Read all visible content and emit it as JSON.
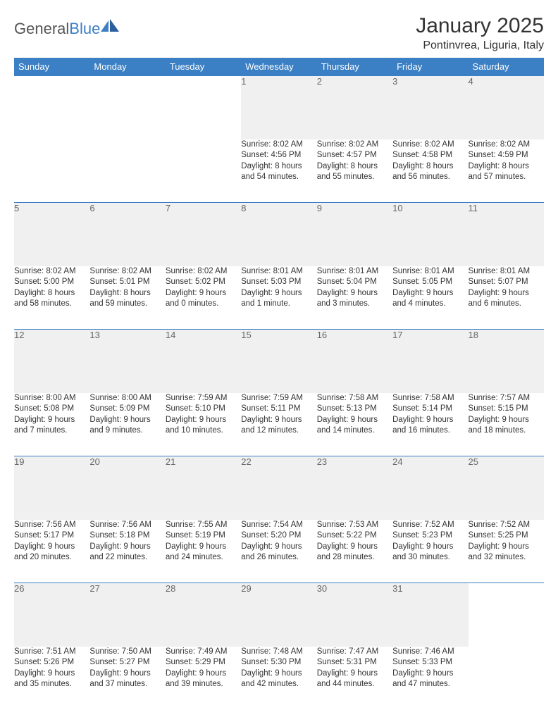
{
  "logo": {
    "text_gray": "General",
    "text_blue": "Blue"
  },
  "title": "January 2025",
  "location": "Pontinvrea, Liguria, Italy",
  "colors": {
    "header_bg": "#3b7fc4",
    "header_text": "#ffffff",
    "daynum_bg": "#f0f0f0",
    "daynum_text": "#666666",
    "border": "#3b7fc4",
    "body_text": "#333333",
    "logo_gray": "#555555",
    "logo_blue": "#3b7fc4"
  },
  "day_headers": [
    "Sunday",
    "Monday",
    "Tuesday",
    "Wednesday",
    "Thursday",
    "Friday",
    "Saturday"
  ],
  "weeks": [
    {
      "nums": [
        "",
        "",
        "",
        "1",
        "2",
        "3",
        "4"
      ],
      "cells": [
        "",
        "",
        "",
        "Sunrise: 8:02 AM\nSunset: 4:56 PM\nDaylight: 8 hours and 54 minutes.",
        "Sunrise: 8:02 AM\nSunset: 4:57 PM\nDaylight: 8 hours and 55 minutes.",
        "Sunrise: 8:02 AM\nSunset: 4:58 PM\nDaylight: 8 hours and 56 minutes.",
        "Sunrise: 8:02 AM\nSunset: 4:59 PM\nDaylight: 8 hours and 57 minutes."
      ]
    },
    {
      "nums": [
        "5",
        "6",
        "7",
        "8",
        "9",
        "10",
        "11"
      ],
      "cells": [
        "Sunrise: 8:02 AM\nSunset: 5:00 PM\nDaylight: 8 hours and 58 minutes.",
        "Sunrise: 8:02 AM\nSunset: 5:01 PM\nDaylight: 8 hours and 59 minutes.",
        "Sunrise: 8:02 AM\nSunset: 5:02 PM\nDaylight: 9 hours and 0 minutes.",
        "Sunrise: 8:01 AM\nSunset: 5:03 PM\nDaylight: 9 hours and 1 minute.",
        "Sunrise: 8:01 AM\nSunset: 5:04 PM\nDaylight: 9 hours and 3 minutes.",
        "Sunrise: 8:01 AM\nSunset: 5:05 PM\nDaylight: 9 hours and 4 minutes.",
        "Sunrise: 8:01 AM\nSunset: 5:07 PM\nDaylight: 9 hours and 6 minutes."
      ]
    },
    {
      "nums": [
        "12",
        "13",
        "14",
        "15",
        "16",
        "17",
        "18"
      ],
      "cells": [
        "Sunrise: 8:00 AM\nSunset: 5:08 PM\nDaylight: 9 hours and 7 minutes.",
        "Sunrise: 8:00 AM\nSunset: 5:09 PM\nDaylight: 9 hours and 9 minutes.",
        "Sunrise: 7:59 AM\nSunset: 5:10 PM\nDaylight: 9 hours and 10 minutes.",
        "Sunrise: 7:59 AM\nSunset: 5:11 PM\nDaylight: 9 hours and 12 minutes.",
        "Sunrise: 7:58 AM\nSunset: 5:13 PM\nDaylight: 9 hours and 14 minutes.",
        "Sunrise: 7:58 AM\nSunset: 5:14 PM\nDaylight: 9 hours and 16 minutes.",
        "Sunrise: 7:57 AM\nSunset: 5:15 PM\nDaylight: 9 hours and 18 minutes."
      ]
    },
    {
      "nums": [
        "19",
        "20",
        "21",
        "22",
        "23",
        "24",
        "25"
      ],
      "cells": [
        "Sunrise: 7:56 AM\nSunset: 5:17 PM\nDaylight: 9 hours and 20 minutes.",
        "Sunrise: 7:56 AM\nSunset: 5:18 PM\nDaylight: 9 hours and 22 minutes.",
        "Sunrise: 7:55 AM\nSunset: 5:19 PM\nDaylight: 9 hours and 24 minutes.",
        "Sunrise: 7:54 AM\nSunset: 5:20 PM\nDaylight: 9 hours and 26 minutes.",
        "Sunrise: 7:53 AM\nSunset: 5:22 PM\nDaylight: 9 hours and 28 minutes.",
        "Sunrise: 7:52 AM\nSunset: 5:23 PM\nDaylight: 9 hours and 30 minutes.",
        "Sunrise: 7:52 AM\nSunset: 5:25 PM\nDaylight: 9 hours and 32 minutes."
      ]
    },
    {
      "nums": [
        "26",
        "27",
        "28",
        "29",
        "30",
        "31",
        ""
      ],
      "cells": [
        "Sunrise: 7:51 AM\nSunset: 5:26 PM\nDaylight: 9 hours and 35 minutes.",
        "Sunrise: 7:50 AM\nSunset: 5:27 PM\nDaylight: 9 hours and 37 minutes.",
        "Sunrise: 7:49 AM\nSunset: 5:29 PM\nDaylight: 9 hours and 39 minutes.",
        "Sunrise: 7:48 AM\nSunset: 5:30 PM\nDaylight: 9 hours and 42 minutes.",
        "Sunrise: 7:47 AM\nSunset: 5:31 PM\nDaylight: 9 hours and 44 minutes.",
        "Sunrise: 7:46 AM\nSunset: 5:33 PM\nDaylight: 9 hours and 47 minutes.",
        ""
      ]
    }
  ]
}
